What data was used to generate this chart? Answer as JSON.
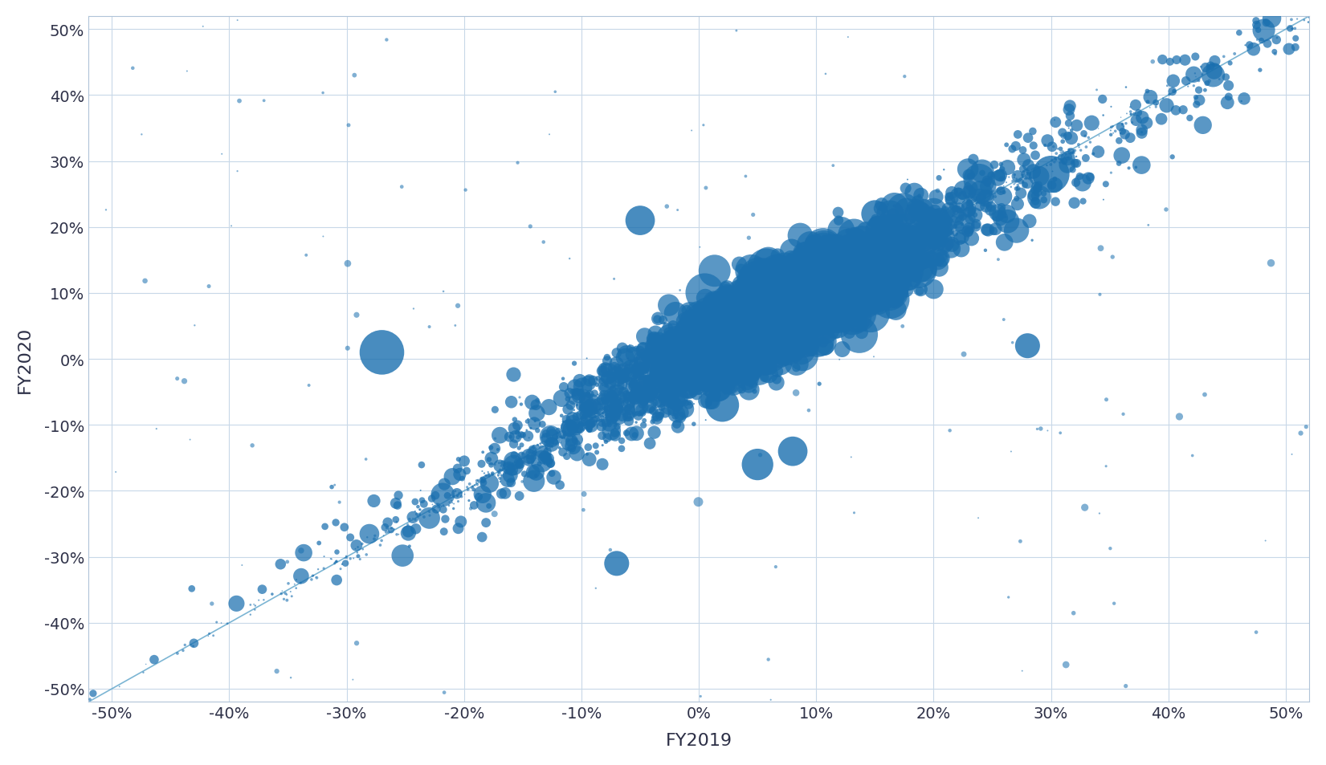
{
  "title": "",
  "xlabel": "FY2019",
  "ylabel": "FY2020",
  "xlim": [
    -0.52,
    0.52
  ],
  "ylim": [
    -0.52,
    0.52
  ],
  "xticks": [
    -0.5,
    -0.4,
    -0.3,
    -0.2,
    -0.1,
    0.0,
    0.1,
    0.2,
    0.3,
    0.4,
    0.5
  ],
  "yticks": [
    -0.5,
    -0.4,
    -0.3,
    -0.2,
    -0.1,
    0.0,
    0.1,
    0.2,
    0.3,
    0.4,
    0.5
  ],
  "dot_color": "#1a6faf",
  "line_color": "#5ba3c9",
  "background_color": "#ffffff",
  "grid_color": "#c8d8e8",
  "tick_label_color": "#2d3047",
  "axis_label_color": "#2d3047",
  "seed": 42
}
